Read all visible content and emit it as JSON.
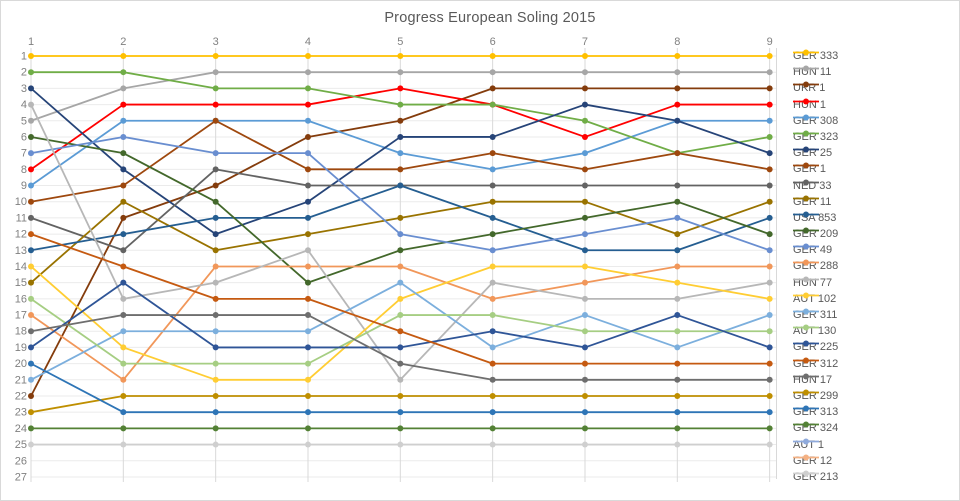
{
  "title": "Progress European Soling 2015",
  "axes": {
    "x_label_color": "#808080",
    "y_label_color": "#808080",
    "x_ticks": [
      "1",
      "2",
      "3",
      "4",
      "5",
      "6",
      "7",
      "8",
      "9"
    ],
    "y_ticks": [
      "1",
      "2",
      "3",
      "4",
      "5",
      "6",
      "7",
      "8",
      "9",
      "10",
      "11",
      "12",
      "13",
      "14",
      "15",
      "16",
      "17",
      "18",
      "19",
      "20",
      "21",
      "22",
      "23",
      "24",
      "25",
      "26",
      "27"
    ]
  },
  "chart_data": {
    "type": "line",
    "title": "Progress European Soling 2015",
    "xlabel": "",
    "ylabel": "",
    "x": [
      1,
      2,
      3,
      4,
      5,
      6,
      7,
      8,
      9
    ],
    "xlim": [
      1,
      9
    ],
    "ylim": [
      1,
      27
    ],
    "y_inverted": true,
    "grid": true,
    "legend_position": "right",
    "marker": "circle",
    "series": [
      {
        "name": "GER 333",
        "color": "#FFC000",
        "values": [
          1,
          1,
          1,
          1,
          1,
          1,
          1,
          1,
          1
        ]
      },
      {
        "name": "HUN 11",
        "color": "#A6A6A6",
        "values": [
          5,
          3,
          2,
          2,
          2,
          2,
          2,
          2,
          2
        ]
      },
      {
        "name": "UKR 1",
        "color": "#843C0C",
        "values": [
          22,
          11,
          9,
          6,
          5,
          3,
          3,
          3,
          3
        ]
      },
      {
        "name": "HUN 1",
        "color": "#FF0000",
        "values": [
          8,
          4,
          4,
          4,
          3,
          4,
          6,
          4,
          4
        ]
      },
      {
        "name": "GER 308",
        "color": "#5B9BD5",
        "values": [
          9,
          5,
          5,
          5,
          7,
          8,
          7,
          5,
          5
        ]
      },
      {
        "name": "GER 323",
        "color": "#70AD47",
        "values": [
          2,
          2,
          3,
          3,
          4,
          4,
          5,
          7,
          6
        ]
      },
      {
        "name": "GER 25",
        "color": "#264478",
        "values": [
          3,
          8,
          12,
          10,
          6,
          6,
          4,
          5,
          7
        ]
      },
      {
        "name": "GER 1",
        "color": "#9E480E",
        "values": [
          10,
          9,
          5,
          8,
          8,
          7,
          8,
          7,
          8
        ]
      },
      {
        "name": "NED 33",
        "color": "#636363",
        "values": [
          11,
          13,
          8,
          9,
          9,
          9,
          9,
          9,
          9
        ]
      },
      {
        "name": "GER 11",
        "color": "#997300",
        "values": [
          15,
          10,
          13,
          12,
          11,
          10,
          10,
          12,
          10
        ]
      },
      {
        "name": "USA 853",
        "color": "#255E91",
        "values": [
          13,
          12,
          11,
          11,
          9,
          11,
          13,
          13,
          11
        ]
      },
      {
        "name": "GER 209",
        "color": "#43682B",
        "values": [
          6,
          7,
          10,
          15,
          13,
          12,
          11,
          10,
          12
        ]
      },
      {
        "name": "GER 49",
        "color": "#698ED0",
        "values": [
          7,
          6,
          7,
          7,
          12,
          13,
          12,
          11,
          13
        ]
      },
      {
        "name": "GER 288",
        "color": "#F1975A",
        "values": [
          17,
          21,
          14,
          14,
          14,
          16,
          15,
          14,
          14
        ]
      },
      {
        "name": "HUN 77",
        "color": "#B7B7B7",
        "values": [
          4,
          16,
          15,
          13,
          21,
          15,
          16,
          16,
          15
        ]
      },
      {
        "name": "AUT 102",
        "color": "#FFCD33",
        "values": [
          14,
          19,
          21,
          21,
          16,
          14,
          14,
          15,
          16
        ]
      },
      {
        "name": "GER 311",
        "color": "#7CAFDD",
        "values": [
          21,
          18,
          18,
          18,
          15,
          19,
          17,
          19,
          17
        ]
      },
      {
        "name": "AUT 130",
        "color": "#A6CE83",
        "values": [
          16,
          20,
          20,
          20,
          17,
          17,
          18,
          18,
          18
        ]
      },
      {
        "name": "GER 225",
        "color": "#2F5597",
        "values": [
          19,
          15,
          19,
          19,
          19,
          18,
          19,
          17,
          19
        ]
      },
      {
        "name": "GER 312",
        "color": "#C55A11",
        "values": [
          12,
          14,
          16,
          16,
          18,
          20,
          20,
          20,
          20
        ]
      },
      {
        "name": "HUN 17",
        "color": "#6E6E6E",
        "values": [
          18,
          17,
          17,
          17,
          20,
          21,
          21,
          21,
          21
        ]
      },
      {
        "name": "GER 299",
        "color": "#BF8F00",
        "values": [
          23,
          22,
          22,
          22,
          22,
          22,
          22,
          22,
          22
        ]
      },
      {
        "name": "GER 313",
        "color": "#2E75B6",
        "values": [
          20,
          23,
          23,
          23,
          23,
          23,
          23,
          23,
          23
        ]
      },
      {
        "name": "GER 324",
        "color": "#538135",
        "values": [
          24,
          24,
          24,
          24,
          24,
          24,
          24,
          24,
          24
        ]
      },
      {
        "name": "AUT 1",
        "color": "#8FAADC",
        "values": [
          null,
          null,
          null,
          null,
          null,
          null,
          null,
          null,
          null
        ]
      },
      {
        "name": "GER 12",
        "color": "#F4B183",
        "values": [
          null,
          null,
          null,
          null,
          null,
          null,
          null,
          null,
          null
        ]
      },
      {
        "name": "GER 213",
        "color": "#CFCFCF",
        "values": [
          25,
          25,
          25,
          25,
          25,
          25,
          25,
          25,
          25
        ]
      }
    ]
  },
  "style": {
    "h_grid_color": "#EBEBEB",
    "v_grid_color": "#D9D9D9",
    "border_color": "#D9D9D9",
    "title_color": "#595959",
    "legend_text_color": "#595959"
  }
}
